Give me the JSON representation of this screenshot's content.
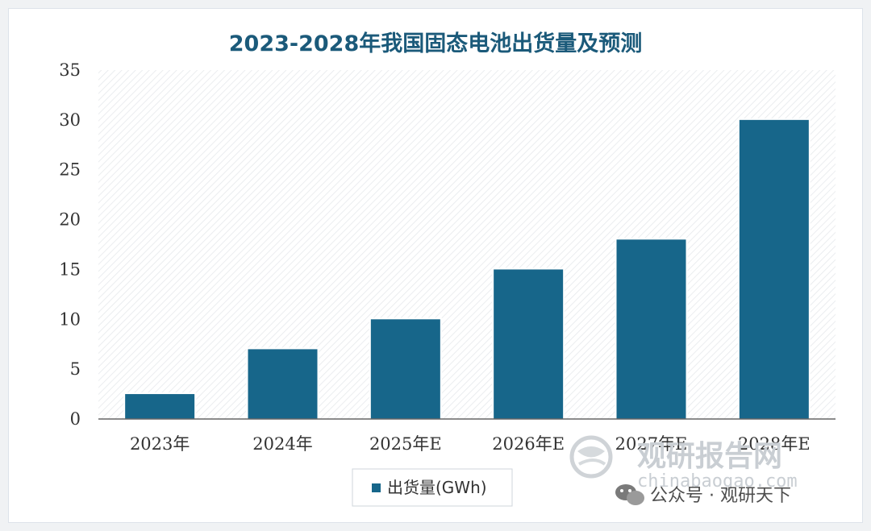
{
  "colors": {
    "bar": "#17668a",
    "title": "#1b5a7a",
    "axis": "#666666",
    "hatch": "#e3e6e9"
  },
  "chart_data": {
    "type": "bar",
    "title": "2023-2028年我国固态电池出货量及预测",
    "categories": [
      "2023年",
      "2024年",
      "2025年E",
      "2026年E",
      "2027年E",
      "2028年E"
    ],
    "series": [
      {
        "name": "出货量(GWh)",
        "values": [
          2.5,
          7,
          10,
          15,
          18,
          30
        ]
      }
    ],
    "yticks": [
      0,
      5,
      10,
      15,
      20,
      25,
      30,
      35
    ],
    "ylim": [
      0,
      35
    ],
    "grid": false,
    "legend": "bottom-center"
  },
  "watermark": {
    "brand": "观研报告网",
    "site": "chinabaogao.com",
    "credit": "公众号 · 观研天下",
    "logo_icon": "swirl-logo-icon",
    "wechat_icon": "wechat-icon"
  }
}
